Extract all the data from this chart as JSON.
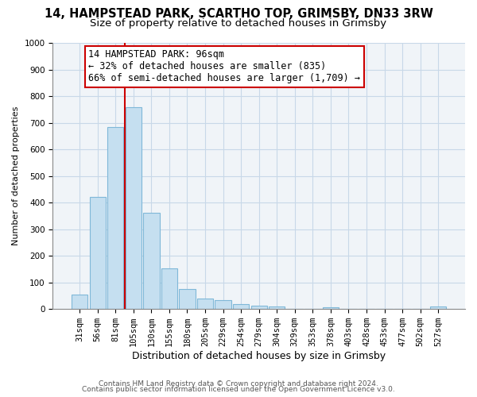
{
  "title": "14, HAMPSTEAD PARK, SCARTHO TOP, GRIMSBY, DN33 3RW",
  "subtitle": "Size of property relative to detached houses in Grimsby",
  "xlabel": "Distribution of detached houses by size in Grimsby",
  "ylabel": "Number of detached properties",
  "bar_labels": [
    "31sqm",
    "56sqm",
    "81sqm",
    "105sqm",
    "130sqm",
    "155sqm",
    "180sqm",
    "205sqm",
    "229sqm",
    "254sqm",
    "279sqm",
    "304sqm",
    "329sqm",
    "353sqm",
    "378sqm",
    "403sqm",
    "428sqm",
    "453sqm",
    "477sqm",
    "502sqm",
    "527sqm"
  ],
  "bar_values": [
    53,
    422,
    685,
    757,
    362,
    152,
    76,
    40,
    32,
    18,
    13,
    10,
    0,
    0,
    8,
    0,
    0,
    0,
    0,
    0,
    10
  ],
  "bar_color": "#c5dff0",
  "bar_edge_color": "#7fb8d8",
  "vline_color": "#cc0000",
  "annotation_line1": "14 HAMPSTEAD PARK: 96sqm",
  "annotation_line2": "← 32% of detached houses are smaller (835)",
  "annotation_line3": "66% of semi-detached houses are larger (1,709) →",
  "annotation_box_facecolor": "white",
  "annotation_box_edgecolor": "#cc0000",
  "ylim": [
    0,
    1000
  ],
  "yticks": [
    0,
    100,
    200,
    300,
    400,
    500,
    600,
    700,
    800,
    900,
    1000
  ],
  "footer1": "Contains HM Land Registry data © Crown copyright and database right 2024.",
  "footer2": "Contains public sector information licensed under the Open Government Licence v3.0.",
  "title_fontsize": 10.5,
  "subtitle_fontsize": 9.5,
  "tick_fontsize": 7.5,
  "ylabel_fontsize": 8,
  "xlabel_fontsize": 9,
  "footer_fontsize": 6.5,
  "grid_color": "#c8d8e8",
  "bg_color": "#f0f4f8"
}
